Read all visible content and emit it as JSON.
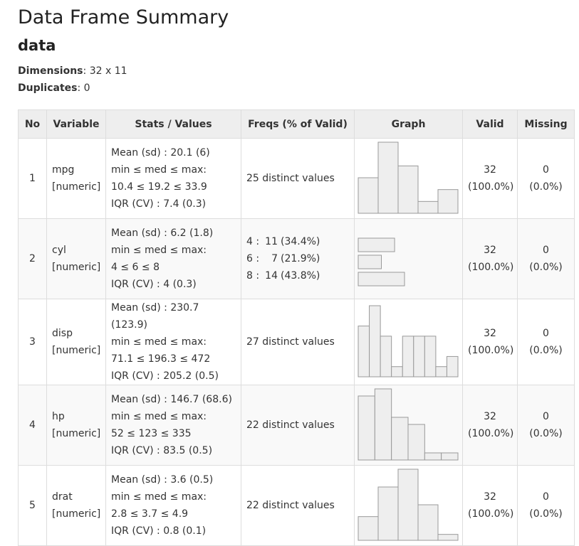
{
  "header": {
    "title": "Data Frame Summary",
    "subtitle": "data"
  },
  "meta": [
    {
      "label": "Dimensions",
      "value": ": 32 x 11"
    },
    {
      "label": "Duplicates",
      "value": ": 0"
    }
  ],
  "table": {
    "columns": [
      "No",
      "Variable",
      "Stats / Values",
      "Freqs (% of Valid)",
      "Graph",
      "Valid",
      "Missing"
    ],
    "rows": [
      {
        "no": "1",
        "variable": "mpg",
        "vtype": "[numeric]",
        "stats": [
          "Mean (sd) : 20.1 (6)",
          "min ≤ med ≤ max:",
          "10.4 ≤ 19.2 ≤ 33.9",
          "IQR (CV) : 7.4 (0.3)"
        ],
        "freqs": "25 distinct values",
        "graph": {
          "type": "histogram",
          "counts": [
            6,
            12,
            8,
            2,
            4
          ]
        },
        "valid": [
          "32",
          "(100.0%)"
        ],
        "missing": [
          "0",
          "(0.0%)"
        ]
      },
      {
        "no": "2",
        "variable": "cyl",
        "vtype": "[numeric]",
        "stats": [
          "Mean (sd) : 6.2 (1.8)",
          "min ≤ med ≤ max:",
          "4 ≤ 6 ≤ 8",
          "IQR (CV) : 4 (0.3)"
        ],
        "freqs": [
          {
            "label": "4 :",
            "count": 11,
            "pct": "(34.4%)"
          },
          {
            "label": "6 :",
            "count": 7,
            "pct": "(21.9%)"
          },
          {
            "label": "8 :",
            "count": 14,
            "pct": "(43.8%)"
          }
        ],
        "graph": {
          "type": "bars"
        },
        "valid": [
          "32",
          "(100.0%)"
        ],
        "missing": [
          "0",
          "(0.0%)"
        ]
      },
      {
        "no": "3",
        "variable": "disp",
        "vtype": "[numeric]",
        "stats": [
          "Mean (sd) : 230.7 (123.9)",
          "min ≤ med ≤ max:",
          "71.1 ≤ 196.3 ≤ 472",
          "IQR (CV) : 205.2 (0.5)"
        ],
        "freqs": "27 distinct values",
        "graph": {
          "type": "histogram",
          "counts": [
            5,
            7,
            4,
            1,
            4,
            4,
            4,
            1,
            2
          ]
        },
        "valid": [
          "32",
          "(100.0%)"
        ],
        "missing": [
          "0",
          "(0.0%)"
        ]
      },
      {
        "no": "4",
        "variable": "hp",
        "vtype": "[numeric]",
        "stats": [
          "Mean (sd) : 146.7 (68.6)",
          "min ≤ med ≤ max:",
          "52 ≤ 123 ≤ 335",
          "IQR (CV) : 83.5 (0.5)"
        ],
        "freqs": "22 distinct values",
        "graph": {
          "type": "histogram",
          "counts": [
            9,
            10,
            6,
            5,
            1,
            1
          ]
        },
        "valid": [
          "32",
          "(100.0%)"
        ],
        "missing": [
          "0",
          "(0.0%)"
        ]
      },
      {
        "no": "5",
        "variable": "drat",
        "vtype": "[numeric]",
        "stats": [
          "Mean (sd) : 3.6 (0.5)",
          "min ≤ med ≤ max:",
          "2.8 ≤ 3.7 ≤ 4.9",
          "IQR (CV) : 0.8 (0.1)"
        ],
        "freqs": "22 distinct values",
        "graph": {
          "type": "histogram",
          "counts": [
            4,
            9,
            12,
            6,
            1
          ]
        },
        "valid": [
          "32",
          "(100.0%)"
        ],
        "missing": [
          "0",
          "(0.0%)"
        ]
      }
    ]
  }
}
